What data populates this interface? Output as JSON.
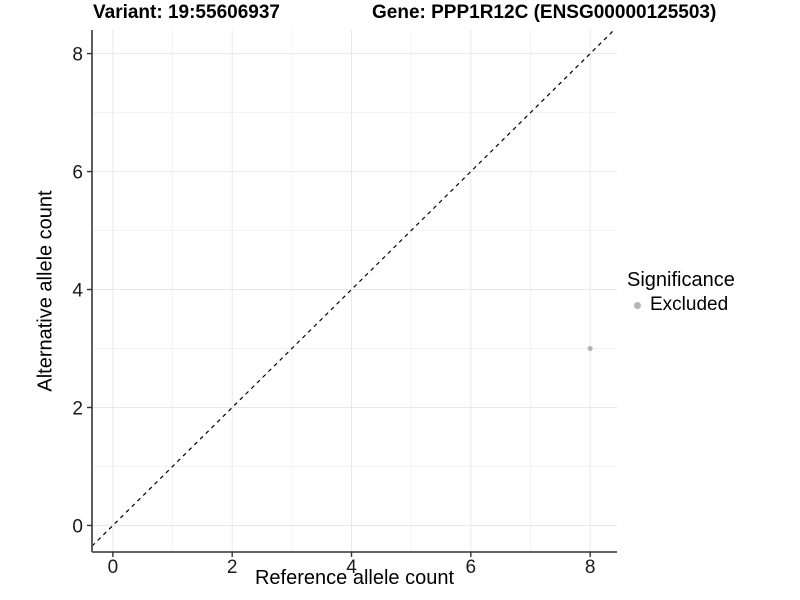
{
  "chart_data": {
    "type": "scatter",
    "title_left": "Variant: 19:55606937",
    "title_right": "Gene: PPP1R12C (ENSG00000125503)",
    "xlabel": "Reference allele count",
    "ylabel": "Alternative allele count",
    "xlim": [
      -0.35,
      8.45
    ],
    "ylim": [
      -0.45,
      8.4
    ],
    "x_ticks": [
      0,
      2,
      4,
      6,
      8
    ],
    "y_ticks": [
      0,
      2,
      4,
      6,
      8
    ],
    "x_minor_ticks": [
      1,
      3,
      5,
      7
    ],
    "y_minor_ticks": [
      1,
      3,
      5,
      7
    ],
    "grid": "major+minor",
    "identity_line": {
      "equation": "y = x",
      "style": "dashed",
      "color": "#000000"
    },
    "series": [
      {
        "name": "Excluded",
        "points": [
          {
            "x": 8,
            "y": 3
          }
        ],
        "color": "#b5b5b5"
      }
    ],
    "legend": {
      "title": "Significance",
      "position": "right",
      "items": [
        {
          "label": "Excluded",
          "color": "#b5b5b5"
        }
      ]
    }
  },
  "colors": {
    "background": "#ffffff",
    "grid_major": "#e8e8e8",
    "grid_minor": "#f3f3f3",
    "axis_line": "#4d4d4d",
    "tick_mark": "#333333",
    "tick_label": "#1a1a1a",
    "point": "#b5b5b5",
    "dashed_line": "#000000"
  }
}
